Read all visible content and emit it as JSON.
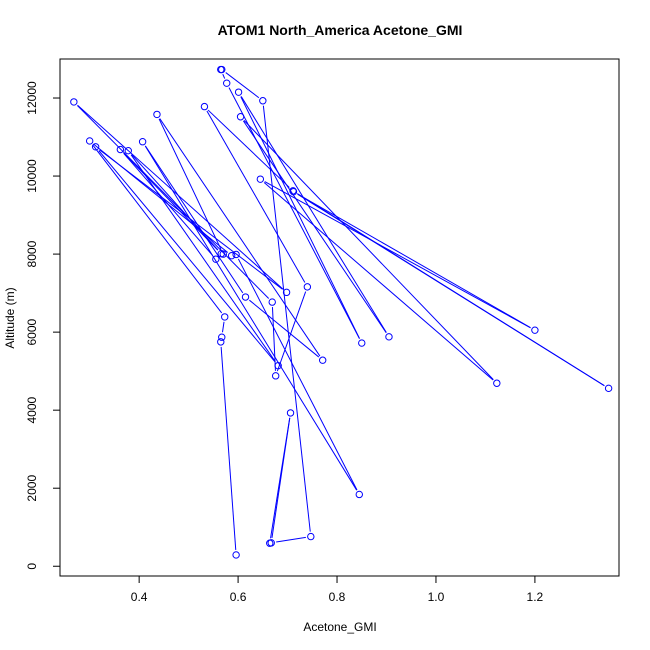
{
  "chart_data": {
    "type": "line",
    "title": "ATOM1 North_America Acetone_GMI",
    "xlabel": "Acetone_GMI",
    "ylabel": "Altitude (m)",
    "xlim": [
      0.24,
      1.37
    ],
    "ylim": [
      -250,
      13000
    ],
    "x_ticks": [
      0.4,
      0.6,
      0.8,
      1.0,
      1.2
    ],
    "x_tick_labels": [
      "0.4",
      "0.6",
      "0.8",
      "1.0",
      "1.2"
    ],
    "y_ticks": [
      0,
      2000,
      4000,
      6000,
      8000,
      10000,
      12000
    ],
    "y_tick_labels": [
      "0",
      "2000",
      "4000",
      "6000",
      "8000",
      "10000",
      "12000"
    ],
    "grid": false,
    "legend": "none",
    "marker": "open-circle",
    "series_color": "#0000ff",
    "series": [
      {
        "x": [
          0.596,
          0.565,
          0.567,
          0.573,
          0.3,
          0.587,
          0.596,
          0.845,
          0.407,
          0.615,
          0.771,
          0.436,
          0.57,
          0.555,
          0.362,
          0.566,
          0.378,
          0.681,
          0.312,
          0.698,
          0.268,
          0.669,
          0.676,
          0.74,
          0.532,
          0.711,
          1.349,
          0.712,
          1.2,
          0.645,
          1.123,
          0.605,
          0.905,
          0.601,
          0.85,
          0.577,
          0.565,
          0.567,
          0.65,
          0.747,
          0.667,
          0.706,
          0.664
        ],
        "y": [
          290,
          5750,
          5870,
          6390,
          10900,
          7960,
          7990,
          1840,
          10880,
          6900,
          5280,
          11580,
          8000,
          7870,
          10680,
          8010,
          10650,
          5140,
          10750,
          7020,
          11900,
          6770,
          4880,
          7160,
          11780,
          9620,
          4560,
          9600,
          6050,
          9920,
          4690,
          11520,
          5880,
          12150,
          5720,
          12380,
          12730,
          12730,
          11930,
          760,
          600,
          3930,
          590
        ]
      }
    ]
  }
}
